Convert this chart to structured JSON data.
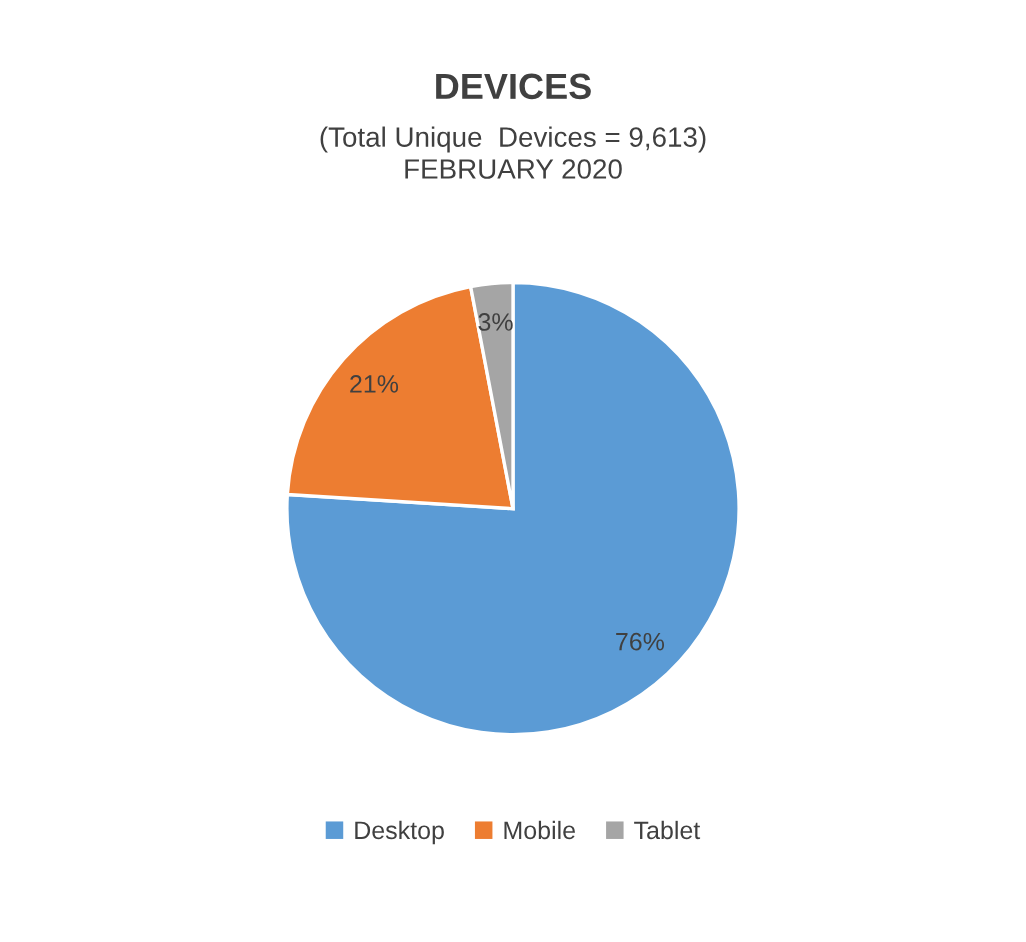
{
  "chart_data": {
    "type": "pie",
    "title": "DEVICES",
    "subtitle": "(Total Unique  Devices = 9,613)\nFEBRUARY 2020",
    "categories": [
      "Desktop",
      "Mobile",
      "Tablet"
    ],
    "values": [
      76,
      21,
      3
    ],
    "colors": [
      "#5b9bd5",
      "#ed7d31",
      "#a5a5a5"
    ],
    "value_labels": [
      "76%",
      "21%",
      "3%"
    ],
    "legend": "bottom"
  }
}
